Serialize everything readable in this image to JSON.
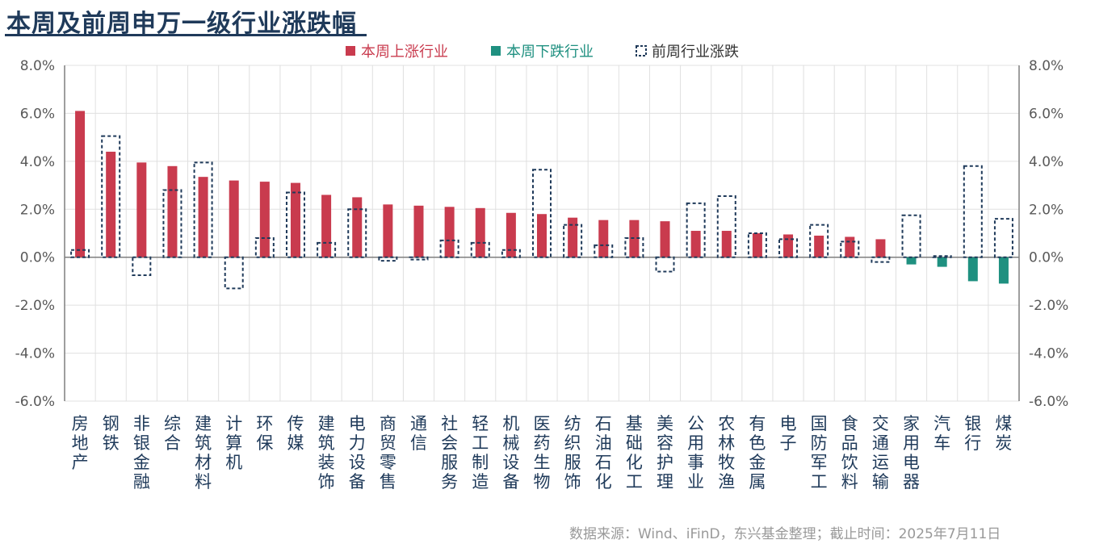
{
  "page": {
    "title": "本周及前周申万一级行业涨跌幅",
    "source": "数据来源：Wind、iFinD，东兴基金整理；截止时间：2025年7月11日"
  },
  "colors": {
    "up": "#c93b4e",
    "down": "#1f9080",
    "prev": "#1f3a5a",
    "grid": "#e0e0e0",
    "axis": "#7f7f7f",
    "tick": "#595959",
    "category": "#1f3a5a",
    "title": "#1f3a5a"
  },
  "chart_data": {
    "type": "bar",
    "title": "本周及前周申万一级行业涨跌幅",
    "legend": {
      "placement": "top-center",
      "items": [
        "本周上涨行业",
        "本周下跌行业",
        "前周行业涨跌"
      ]
    },
    "categories": [
      "房地产",
      "钢铁",
      "非银金融",
      "综合",
      "建筑材料",
      "计算机",
      "环保",
      "传媒",
      "建筑装饰",
      "电力设备",
      "商贸零售",
      "通信",
      "社会服务",
      "轻工制造",
      "机械设备",
      "医药生物",
      "纺织服饰",
      "石油石化",
      "基础化工",
      "美容护理",
      "公用事业",
      "农林牧渔",
      "有色金属",
      "电子",
      "国防军工",
      "食品饮料",
      "交通运输",
      "家用电器",
      "汽车",
      "银行",
      "煤炭"
    ],
    "series": [
      {
        "name": "本周",
        "values": [
          6.1,
          4.4,
          3.95,
          3.8,
          3.35,
          3.2,
          3.15,
          3.1,
          2.6,
          2.5,
          2.2,
          2.15,
          2.1,
          2.05,
          1.85,
          1.8,
          1.65,
          1.55,
          1.55,
          1.5,
          1.1,
          1.1,
          1.0,
          0.95,
          0.9,
          0.85,
          0.75,
          -0.3,
          -0.4,
          -1.0,
          -1.1
        ]
      },
      {
        "name": "前周行业涨跌",
        "values": [
          0.3,
          5.05,
          -0.75,
          2.8,
          3.95,
          -1.3,
          0.8,
          2.7,
          0.6,
          2.0,
          -0.15,
          -0.1,
          0.7,
          0.6,
          0.3,
          3.65,
          1.35,
          0.5,
          0.8,
          -0.6,
          2.25,
          2.55,
          1.0,
          0.75,
          1.35,
          0.65,
          -0.2,
          1.75,
          0.05,
          3.8,
          1.6
        ]
      }
    ],
    "ylim": [
      -6,
      8
    ],
    "yticks": [
      "-6.0%",
      "-4.0%",
      "-2.0%",
      "0.0%",
      "2.0%",
      "4.0%",
      "6.0%",
      "8.0%"
    ],
    "grid": true
  }
}
